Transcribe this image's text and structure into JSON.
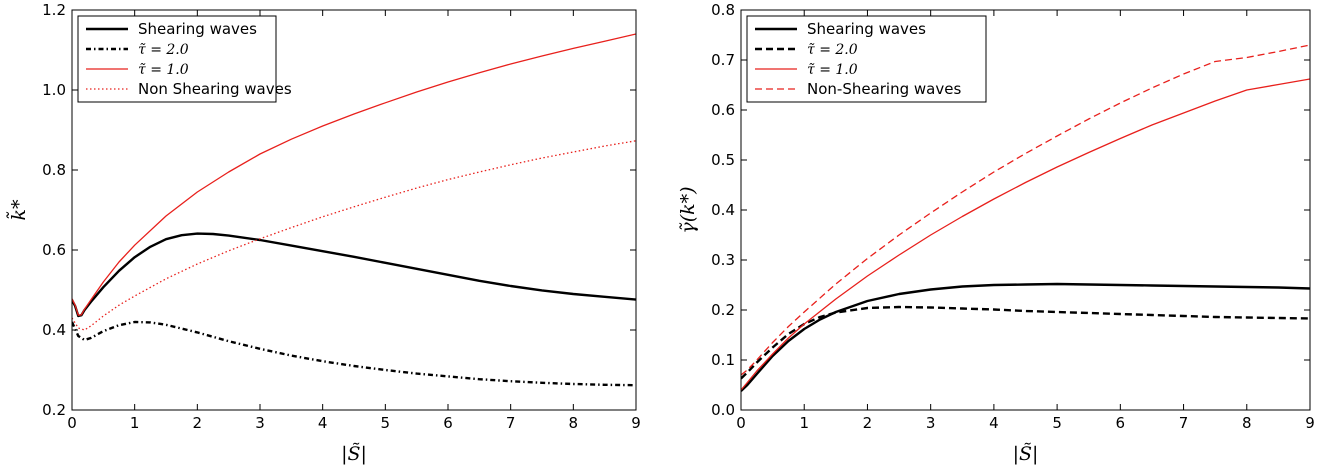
{
  "chart_data": [
    {
      "type": "line",
      "title": "",
      "xlabel": "|S̃|",
      "ylabel": "k̃*",
      "xlim": [
        0,
        9
      ],
      "ylim": [
        0.2,
        1.2
      ],
      "xticks": [
        0,
        1,
        2,
        3,
        4,
        5,
        6,
        7,
        8,
        9
      ],
      "yticks": [
        0.2,
        0.4,
        0.6,
        0.8,
        1.0,
        1.2
      ],
      "ytick_labels": [
        "0.2",
        "0.4",
        "0.6",
        "0.8",
        "1.0",
        "1.2"
      ],
      "grid": false,
      "legend_position": "top-left",
      "series": [
        {
          "name": "Shearing waves",
          "color": "#000000",
          "style": "solid",
          "x": [
            0,
            0.05,
            0.1,
            0.15,
            0.2,
            0.3,
            0.5,
            0.75,
            1.0,
            1.25,
            1.5,
            1.75,
            2.0,
            2.25,
            2.5,
            3.0,
            3.5,
            4.0,
            4.5,
            5.0,
            5.5,
            6.0,
            6.5,
            7.0,
            7.5,
            8.0,
            8.5,
            9.0
          ],
          "y": [
            0.475,
            0.46,
            0.435,
            0.437,
            0.45,
            0.47,
            0.507,
            0.548,
            0.582,
            0.608,
            0.627,
            0.637,
            0.641,
            0.64,
            0.636,
            0.625,
            0.611,
            0.597,
            0.583,
            0.568,
            0.553,
            0.538,
            0.523,
            0.51,
            0.499,
            0.49,
            0.483,
            0.476
          ]
        },
        {
          "name": "τ̃ = 2.0",
          "color": "#000000",
          "style": "dashdot",
          "x": [
            0,
            0.1,
            0.2,
            0.3,
            0.5,
            0.75,
            1.0,
            1.25,
            1.5,
            2.0,
            2.5,
            3.0,
            3.5,
            4.0,
            4.5,
            5.0,
            5.5,
            6.0,
            6.5,
            7.0,
            7.5,
            8.0,
            8.5,
            9.0
          ],
          "y": [
            0.42,
            0.385,
            0.375,
            0.38,
            0.397,
            0.412,
            0.42,
            0.419,
            0.413,
            0.394,
            0.372,
            0.353,
            0.336,
            0.322,
            0.31,
            0.3,
            0.291,
            0.284,
            0.277,
            0.272,
            0.268,
            0.265,
            0.263,
            0.262
          ]
        },
        {
          "name": "τ̃ = 1.0",
          "color": "#e8201c",
          "style": "solid",
          "x": [
            0,
            0.05,
            0.1,
            0.15,
            0.2,
            0.3,
            0.5,
            0.75,
            1.0,
            1.5,
            2.0,
            2.5,
            3.0,
            3.5,
            4.0,
            4.5,
            5.0,
            5.5,
            6.0,
            6.5,
            7.0,
            7.5,
            8.0,
            8.5,
            9.0
          ],
          "y": [
            0.478,
            0.462,
            0.437,
            0.438,
            0.452,
            0.475,
            0.52,
            0.57,
            0.612,
            0.685,
            0.745,
            0.795,
            0.84,
            0.877,
            0.91,
            0.94,
            0.968,
            0.995,
            1.02,
            1.043,
            1.065,
            1.085,
            1.104,
            1.122,
            1.14
          ]
        },
        {
          "name": "Non Shearing waves",
          "color": "#e8201c",
          "style": "dotted",
          "x": [
            0,
            0.1,
            0.2,
            0.3,
            0.5,
            0.75,
            1.0,
            1.5,
            2.0,
            2.5,
            3.0,
            3.5,
            4.0,
            4.5,
            5.0,
            5.5,
            6.0,
            6.5,
            7.0,
            7.5,
            8.0,
            8.5,
            9.0
          ],
          "y": [
            0.43,
            0.405,
            0.4,
            0.41,
            0.435,
            0.462,
            0.485,
            0.528,
            0.565,
            0.598,
            0.628,
            0.656,
            0.683,
            0.708,
            0.732,
            0.755,
            0.776,
            0.795,
            0.813,
            0.83,
            0.845,
            0.86,
            0.873
          ]
        }
      ]
    },
    {
      "type": "line",
      "title": "",
      "xlabel": "|S̃|",
      "ylabel": "γ̃(k*)",
      "xlim": [
        0,
        9
      ],
      "ylim": [
        0.0,
        0.8
      ],
      "xticks": [
        0,
        1,
        2,
        3,
        4,
        5,
        6,
        7,
        8,
        9
      ],
      "yticks": [
        0.0,
        0.1,
        0.2,
        0.3,
        0.4,
        0.5,
        0.6,
        0.7,
        0.8
      ],
      "ytick_labels": [
        "0.0",
        "0.1",
        "0.2",
        "0.3",
        "0.4",
        "0.5",
        "0.6",
        "0.7",
        "0.8"
      ],
      "grid": false,
      "legend_position": "top-left",
      "series": [
        {
          "name": "Shearing waves",
          "color": "#000000",
          "style": "solid",
          "x": [
            0,
            0.1,
            0.25,
            0.5,
            0.75,
            1.0,
            1.25,
            1.5,
            2.0,
            2.5,
            3.0,
            3.5,
            4.0,
            4.5,
            5.0,
            5.5,
            6.0,
            6.5,
            7.0,
            7.5,
            8.0,
            8.5,
            9.0
          ],
          "y": [
            0.038,
            0.05,
            0.072,
            0.108,
            0.138,
            0.162,
            0.181,
            0.196,
            0.218,
            0.232,
            0.241,
            0.247,
            0.25,
            0.251,
            0.252,
            0.251,
            0.25,
            0.249,
            0.248,
            0.247,
            0.246,
            0.245,
            0.243
          ]
        },
        {
          "name": "τ̃ = 2.0",
          "color": "#000000",
          "style": "dashed",
          "x": [
            0,
            0.1,
            0.25,
            0.5,
            0.75,
            1.0,
            1.25,
            1.5,
            2.0,
            2.5,
            3.0,
            3.5,
            4.0,
            4.5,
            5.0,
            5.5,
            6.0,
            6.5,
            7.0,
            7.5,
            8.0,
            8.5,
            9.0
          ],
          "y": [
            0.063,
            0.075,
            0.095,
            0.125,
            0.152,
            0.172,
            0.186,
            0.195,
            0.204,
            0.206,
            0.205,
            0.203,
            0.201,
            0.198,
            0.196,
            0.194,
            0.192,
            0.19,
            0.188,
            0.186,
            0.185,
            0.184,
            0.183
          ]
        },
        {
          "name": "τ̃ = 1.0",
          "color": "#e8201c",
          "style": "solid",
          "x": [
            0,
            0.1,
            0.25,
            0.5,
            0.75,
            1.0,
            1.5,
            2.0,
            2.5,
            3.0,
            3.5,
            4.0,
            4.5,
            5.0,
            5.5,
            6.0,
            6.5,
            7.0,
            7.5,
            8.0,
            8.5,
            9.0
          ],
          "y": [
            0.04,
            0.055,
            0.078,
            0.112,
            0.144,
            0.172,
            0.222,
            0.268,
            0.31,
            0.35,
            0.387,
            0.422,
            0.455,
            0.486,
            0.515,
            0.543,
            0.57,
            0.594,
            0.618,
            0.64,
            0.651,
            0.662
          ]
        },
        {
          "name": "Non-Shearing waves",
          "color": "#e8201c",
          "style": "dashed",
          "x": [
            0,
            0.1,
            0.25,
            0.5,
            0.75,
            1.0,
            1.5,
            2.0,
            2.5,
            3.0,
            3.5,
            4.0,
            4.5,
            5.0,
            5.5,
            6.0,
            6.5,
            7.0,
            7.5,
            8.0,
            8.5,
            9.0
          ],
          "y": [
            0.07,
            0.08,
            0.1,
            0.135,
            0.167,
            0.196,
            0.252,
            0.303,
            0.35,
            0.394,
            0.436,
            0.476,
            0.513,
            0.548,
            0.582,
            0.614,
            0.644,
            0.672,
            0.697,
            0.705,
            0.717,
            0.73
          ]
        }
      ]
    }
  ]
}
